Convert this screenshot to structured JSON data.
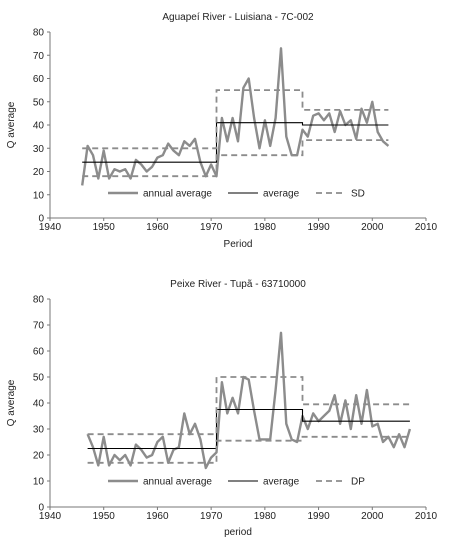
{
  "chart_data": [
    {
      "type": "line",
      "title": "Aguapeí River  - Luisiana - 7C-002",
      "xlabel": "Period",
      "ylabel": "Q average",
      "xlim": [
        1940,
        2010
      ],
      "ylim": [
        0,
        80
      ],
      "xticks": [
        "1940",
        "1950",
        "1960",
        "1970",
        "1980",
        "1990",
        "2000",
        "2010"
      ],
      "yticks": [
        "0",
        "10",
        "20",
        "30",
        "40",
        "50",
        "60",
        "70",
        "80"
      ],
      "grid": false,
      "legend_position": "bottom-center",
      "legend": [
        "annual average",
        "average",
        "SD"
      ],
      "colors": {
        "annual": "#8c8c8c",
        "average": "#000000",
        "sd": "#8c8c8c"
      },
      "series": [
        {
          "name": "annual average",
          "style": "thick-gray",
          "x": [
            1946,
            1947,
            1948,
            1949,
            1950,
            1951,
            1952,
            1953,
            1954,
            1955,
            1956,
            1957,
            1958,
            1959,
            1960,
            1961,
            1962,
            1963,
            1964,
            1965,
            1966,
            1967,
            1968,
            1969,
            1970,
            1971,
            1972,
            1973,
            1974,
            1975,
            1976,
            1977,
            1978,
            1979,
            1980,
            1981,
            1982,
            1983,
            1984,
            1985,
            1986,
            1987,
            1988,
            1989,
            1990,
            1991,
            1992,
            1993,
            1994,
            1995,
            1996,
            1997,
            1998,
            1999,
            2000,
            2001,
            2002,
            2003
          ],
          "y": [
            14,
            31,
            27,
            17,
            29,
            17,
            21,
            20,
            21,
            17,
            25,
            23,
            20,
            22,
            26,
            27,
            32,
            29,
            27,
            33,
            31,
            34,
            24,
            18,
            23,
            18,
            43,
            33,
            43,
            33,
            56,
            60,
            43,
            30,
            42,
            31,
            43,
            73,
            35,
            27,
            27,
            38,
            35,
            44,
            45,
            42,
            45,
            37,
            46,
            40,
            42,
            34,
            47,
            41,
            50,
            37,
            33,
            31
          ]
        },
        {
          "name": "average",
          "style": "thin-black-step",
          "x": [
            1946,
            1971,
            1971,
            1987,
            1987,
            2003
          ],
          "y": [
            24,
            24,
            41,
            41,
            40,
            40
          ]
        },
        {
          "name": "SD",
          "style": "dashed-gray-step",
          "x": [
            1946,
            1971,
            1971,
            1987,
            1987,
            2003
          ],
          "y": [
            30,
            30,
            55,
            55,
            46.5,
            46.5
          ]
        },
        {
          "name": "",
          "style": "dashed-gray-step",
          "x": [
            1946,
            1971,
            1971,
            1987,
            1987,
            2003
          ],
          "y": [
            18,
            18,
            27,
            27,
            33.5,
            33.5
          ]
        }
      ]
    },
    {
      "type": "line",
      "title": "Peixe River - Tupã - 63710000",
      "xlabel": "period",
      "ylabel": "Q average",
      "xlim": [
        1940,
        2010
      ],
      "ylim": [
        0,
        80
      ],
      "xticks": [
        "1940",
        "1950",
        "1960",
        "1970",
        "1980",
        "1990",
        "2000",
        "2010"
      ],
      "yticks": [
        "0",
        "10",
        "20",
        "30",
        "40",
        "50",
        "60",
        "70",
        "80"
      ],
      "grid": false,
      "legend_position": "bottom-center",
      "legend": [
        "annual average",
        "average",
        "DP"
      ],
      "colors": {
        "annual": "#8c8c8c",
        "average": "#000000",
        "sd": "#8c8c8c"
      },
      "series": [
        {
          "name": "annual average",
          "style": "thick-gray",
          "x": [
            1947,
            1948,
            1949,
            1950,
            1951,
            1952,
            1953,
            1954,
            1955,
            1956,
            1957,
            1958,
            1959,
            1960,
            1961,
            1962,
            1963,
            1964,
            1965,
            1966,
            1967,
            1968,
            1969,
            1970,
            1971,
            1972,
            1973,
            1974,
            1975,
            1976,
            1977,
            1978,
            1979,
            1980,
            1981,
            1982,
            1983,
            1984,
            1985,
            1986,
            1987,
            1988,
            1989,
            1990,
            1991,
            1992,
            1993,
            1994,
            1995,
            1996,
            1997,
            1998,
            1999,
            2000,
            2001,
            2002,
            2003,
            2004,
            2005,
            2006,
            2007
          ],
          "y": [
            28,
            23,
            16,
            27,
            16,
            20,
            18,
            20,
            16,
            24,
            22,
            19,
            20,
            25,
            27,
            17,
            22,
            23,
            36,
            28,
            32,
            26,
            15,
            19,
            21,
            48,
            36,
            42,
            36,
            50,
            49,
            37,
            26,
            26,
            26,
            45,
            67,
            32,
            26,
            25,
            35,
            30,
            36,
            33,
            35,
            37,
            43,
            32,
            41,
            30,
            43,
            32,
            45,
            31,
            32,
            25,
            27,
            23,
            28,
            23,
            30
          ]
        },
        {
          "name": "average",
          "style": "thin-black-step",
          "x": [
            1947,
            1971,
            1971,
            1987,
            1987,
            2007
          ],
          "y": [
            22.5,
            22.5,
            37.5,
            37.5,
            33,
            33
          ]
        },
        {
          "name": "DP",
          "style": "dashed-gray-step",
          "x": [
            1947,
            1971,
            1971,
            1987,
            1987,
            2007
          ],
          "y": [
            28,
            28,
            50,
            50,
            39.5,
            39.5
          ]
        },
        {
          "name": "",
          "style": "dashed-gray-step",
          "x": [
            1947,
            1971,
            1971,
            1987,
            1987,
            2007
          ],
          "y": [
            17,
            17,
            25.5,
            25.5,
            27,
            27
          ]
        }
      ]
    }
  ]
}
